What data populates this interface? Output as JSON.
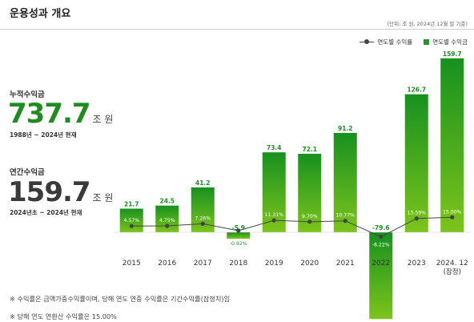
{
  "header": {
    "title": "운용성과 개요",
    "unit_note": "(단위: 조 원, 2024년 12월 말 기준)"
  },
  "legend": {
    "rate_label": "연도별 수익률",
    "return_label": "연도별 수익금"
  },
  "cumulative": {
    "label": "누적수익금",
    "value": "737.7",
    "unit": "조 원",
    "period": "1988년 ~ 2024년 현재",
    "color": "#1e8c1e"
  },
  "annual": {
    "label": "연간수익금",
    "value": "159.7",
    "unit": "조 원",
    "period": "2024년초 ~ 2024년 현재",
    "color": "#3a3a3a"
  },
  "notes": {
    "note1": "※ 수익률은 금액가중수익률이며, 당해 연도 연중 수익률은 기간수익률(잠정치)임",
    "note2": "※ 당해 연도 연환산 수익률은 15.00%"
  },
  "chart_data": {
    "type": "bar",
    "categories": [
      "2015",
      "2016",
      "2017",
      "2018",
      "2019",
      "2020",
      "2021",
      "2022",
      "2023",
      "2024. 12"
    ],
    "category_sublabels": [
      "",
      "",
      "",
      "",
      "",
      "",
      "",
      "",
      "",
      "(잠정)"
    ],
    "series": [
      {
        "name": "연도별 수익금",
        "type": "bar",
        "values": [
          21.7,
          24.5,
          41.2,
          -5.9,
          73.4,
          72.1,
          91.2,
          -79.6,
          126.7,
          159.7
        ],
        "labels": [
          "21.7",
          "24.5",
          "41.2",
          "-5.9",
          "73.4",
          "72.1",
          "91.2",
          "-79.6",
          "126.7",
          "159.7"
        ],
        "color": "#1e9a25"
      },
      {
        "name": "연도별 수익률",
        "type": "line",
        "values": [
          4.57,
          4.75,
          7.26,
          -0.92,
          11.31,
          9.7,
          10.77,
          -8.22,
          13.59,
          15.0
        ],
        "labels": [
          "4.57%",
          "4.75%",
          "7.26%",
          "-0.92%",
          "11.31%",
          "9.70%",
          "10.77%",
          "-8.22%",
          "13.59%",
          "15.00%"
        ],
        "color": "#444444"
      }
    ],
    "colors": {
      "bar_top": "#17911f",
      "bar_bottom": "#7cc41b",
      "line": "#444444",
      "rate_label_bg": "rgba(255,255,255,0.0)"
    }
  }
}
